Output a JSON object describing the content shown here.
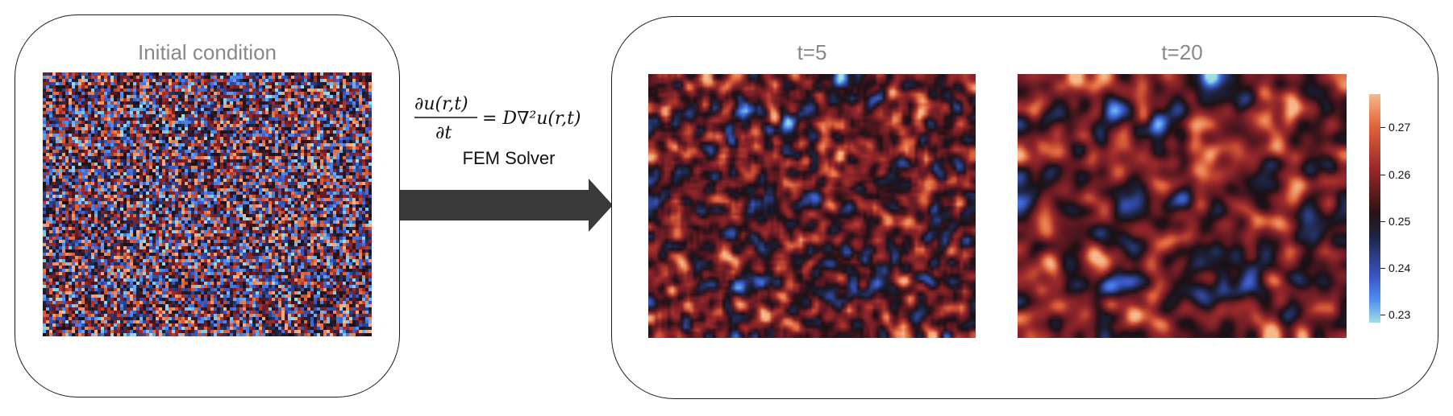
{
  "panels": {
    "initial_title": "Initial condition",
    "t5_title": "t=5",
    "t20_title": "t=20"
  },
  "solver": {
    "label": "FEM Solver",
    "equation_lhs_num": "∂u(r,t)",
    "equation_lhs_den": "∂t",
    "equation_rhs": "= D∇²u(r,t)"
  },
  "colorbar": {
    "ticks": [
      "0.27",
      "0.26",
      "0.25",
      "0.24",
      "0.23"
    ]
  },
  "colors": {
    "border": "#1a1a1a",
    "title_gray": "#888888",
    "arrow": "#3a3a3a"
  }
}
